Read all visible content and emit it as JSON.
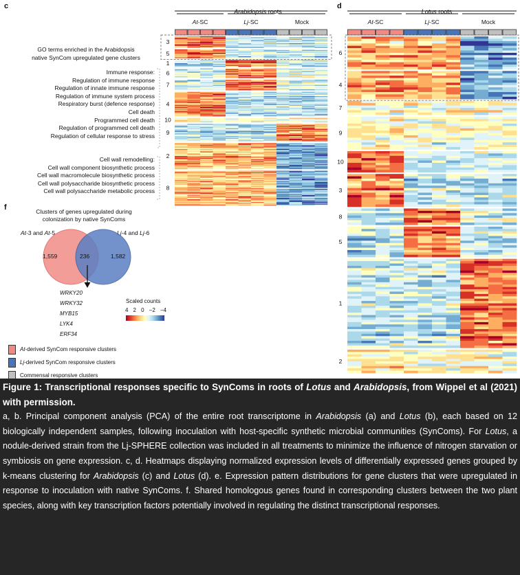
{
  "figure": {
    "panel_c": {
      "letter": "c",
      "title_italic": "Arabidopsis",
      "title_rest": " roots",
      "groups": [
        "At-SC",
        "Lj-SC",
        "Mock"
      ],
      "group_colors": [
        "#f08a85",
        "#4a74b8",
        "#c0c0c0"
      ],
      "clusters": [
        {
          "label": "3",
          "rows": 13,
          "pattern": "A"
        },
        {
          "label": "5",
          "rows": 10,
          "pattern": "A"
        },
        {
          "label": "1",
          "rows": 8,
          "pattern": "L"
        },
        {
          "label": "6",
          "rows": 11,
          "pattern": "L"
        },
        {
          "label": "7",
          "rows": 12,
          "pattern": "L"
        },
        {
          "label": "4",
          "rows": 28,
          "pattern": "A"
        },
        {
          "label": "10",
          "rows": 5,
          "pattern": "N"
        },
        {
          "label": "9",
          "rows": 20,
          "pattern": "M"
        },
        {
          "label": "2",
          "rows": 30,
          "pattern": "AL"
        },
        {
          "label": "8",
          "rows": 40,
          "pattern": "AL"
        }
      ],
      "go_header": [
        "GO terms enriched in the Arabidopsis",
        "native SynCom upregulated gene clusters"
      ],
      "go_terms_1": [
        "Immune response:",
        "Regulation of immune response",
        "Regulation of innate immune response",
        "Regulation of immune system process",
        "Respiratory burst (defence response)",
        "Cell death",
        "Programmed cell death",
        "Regulation of programmed cell death",
        "Regulation of cellular response to stress"
      ],
      "go_terms_2": [
        "Cell wall remodelling:",
        "Cell wall component biosynthetic process",
        "Cell wall macromolecule biosynthetic process",
        "Cell wall polysaccharide biosynthetic process",
        "Cell wall polysaccharide metabolic process"
      ]
    },
    "panel_d": {
      "letter": "d",
      "title_italic": "Lotus",
      "title_rest": " roots",
      "groups": [
        "At-SC",
        "Lj-SC",
        "Mock"
      ],
      "clusters": [
        {
          "label": "6",
          "rows": 14,
          "pattern": "AL"
        },
        {
          "label": "4",
          "rows": 12,
          "pattern": "AL"
        },
        {
          "label": "7",
          "rows": 6,
          "pattern": "N"
        },
        {
          "label": "9",
          "rows": 14,
          "pattern": "N"
        },
        {
          "label": "10",
          "rows": 9,
          "pattern": "A"
        },
        {
          "label": "3",
          "rows": 14,
          "pattern": "A"
        },
        {
          "label": "8",
          "rows": 7,
          "pattern": "L"
        },
        {
          "label": "5",
          "rows": 13,
          "pattern": "L"
        },
        {
          "label": "1",
          "rows": 38,
          "pattern": "M"
        },
        {
          "label": "2",
          "rows": 10,
          "pattern": "N"
        }
      ]
    },
    "panel_f": {
      "letter": "f",
      "title": [
        "Clusters of genes upregulated during",
        "colonization by native SynComs"
      ],
      "set_a_label": "At-3 and At-5",
      "set_b_label": "Lj-4 and Lj-6",
      "count_a": "1,559",
      "count_shared": "236",
      "count_b": "1,582",
      "genes": [
        "WRKY20",
        "WRKY32",
        "MYB15",
        "LYK4",
        "ERF34"
      ]
    },
    "colorbar": {
      "title": "Scaled counts",
      "ticks": [
        "4",
        "2",
        "0",
        "−2",
        "−4"
      ],
      "colors": [
        "#a50026",
        "#d73027",
        "#f46d43",
        "#fdae61",
        "#fee090",
        "#ffffbf",
        "#e0f3f8",
        "#abd9e9",
        "#74add1",
        "#4575b4",
        "#313695"
      ]
    },
    "legend": [
      {
        "prefix": "At",
        "text": "-derived SynCom responsive clusters",
        "color": "#f08a85"
      },
      {
        "prefix": "Lj",
        "text": "-derived SynCom responsive clusters",
        "color": "#4a74b8"
      },
      {
        "prefix": "",
        "text": "Commensal responsive clusters",
        "color": "#c0c0c0"
      }
    ]
  },
  "caption": {
    "title_parts": [
      "Figure 1: Transcriptional responses specific to SynComs in roots of ",
      "Lotus",
      " and ",
      "Arabidopsis",
      ", from Wippel et al (2021) with permission."
    ],
    "body_parts": [
      "a, b. Principal component analysis (PCA) of the entire root transcriptome in ",
      "Arabidopsis",
      " (a) and ",
      "Lotus",
      " (b), each based on 12 biologically independent samples, following inoculation with host-specific synthetic microbial communities (SynComs). For ",
      "Lotus",
      ", a nodule-derived strain from the Lj-SPHERE collection was included in all treatments to minimize the influence of nitrogen starvation or symbiosis on gene expression. c, d. Heatmaps displaying normalized expression levels of differentially expressed genes grouped by k-means clustering for ",
      "Arabidopsis",
      " (c) and ",
      "Lotus",
      " (d). e. Expression pattern distributions for gene clusters that were upregulated in response to inoculation with native SynComs. f. Shared homologous genes found in corresponding clusters between the two plant species, along with key transcription factors potentially involved in regulating the distinct transcriptional responses."
    ]
  }
}
